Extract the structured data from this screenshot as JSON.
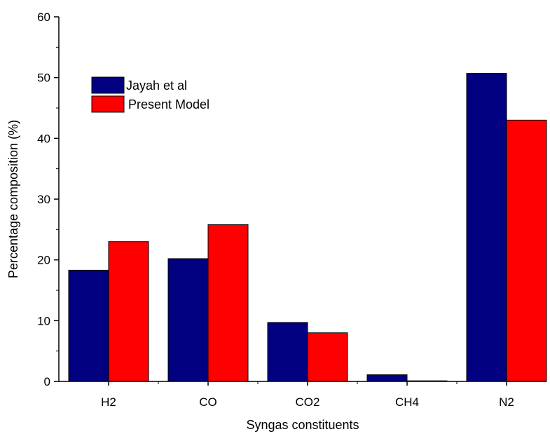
{
  "chart_data": {
    "type": "bar",
    "title": "",
    "xlabel": "Syngas constituents",
    "ylabel": "Percentage composition (%)",
    "categories": [
      "H2",
      "CO",
      "CO2",
      "CH4",
      "N2"
    ],
    "series": [
      {
        "name": "Jayah et al",
        "color": "#000080",
        "values": [
          18.3,
          20.2,
          9.7,
          1.1,
          50.7
        ]
      },
      {
        "name": "Present Model",
        "color": "#ff0000",
        "values": [
          23.0,
          25.8,
          8.0,
          0.1,
          43.0
        ]
      }
    ],
    "ylim": [
      0,
      60
    ],
    "yticks": [
      0,
      10,
      20,
      30,
      40,
      50,
      60
    ],
    "grid": false,
    "legend_position": "top-left"
  }
}
